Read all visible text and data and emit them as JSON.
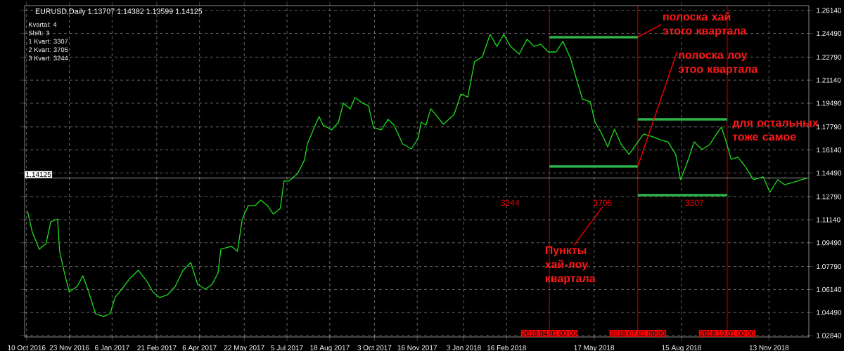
{
  "chart_data": {
    "type": "line",
    "title": "EURUSD,Daily  1.13707 1.14382 1.13599 1.14125",
    "xlim": [
      "2016-10-08",
      "2018-12-24"
    ],
    "ylim": [
      1.0274,
      1.2648
    ],
    "xticks": [
      {
        "value": "2016-10-10",
        "label": "10 Oct 2016"
      },
      {
        "value": "2016-11-23",
        "label": "23 Nov 2016"
      },
      {
        "value": "2017-01-06",
        "label": "6 Jan 2017"
      },
      {
        "value": "2017-02-21",
        "label": "21 Feb 2017"
      },
      {
        "value": "2017-04-06",
        "label": "6 Apr 2017"
      },
      {
        "value": "2017-05-22",
        "label": "22 May 2017"
      },
      {
        "value": "2017-07-05",
        "label": "5 Jul 2017"
      },
      {
        "value": "2017-08-18",
        "label": "18 Aug 2017"
      },
      {
        "value": "2017-10-03",
        "label": "3 Oct 2017"
      },
      {
        "value": "2017-11-16",
        "label": "16 Nov 2017"
      },
      {
        "value": "2018-01-03",
        "label": "3 Jan 2018"
      },
      {
        "value": "2018-02-16",
        "label": "16 Feb 2018"
      },
      {
        "value": "2018-05-17",
        "label": "17 May 2018"
      },
      {
        "value": "2018-08-15",
        "label": "15 Aug 2018"
      },
      {
        "value": "2018-11-13",
        "label": "13 Nov 2018"
      }
    ],
    "yticks": [
      {
        "value": 1.0284,
        "label": "1.02840"
      },
      {
        "value": 1.0449,
        "label": "1.04490"
      },
      {
        "value": 1.0614,
        "label": "1.06140"
      },
      {
        "value": 1.0779,
        "label": "1.07790"
      },
      {
        "value": 1.0949,
        "label": "1.09490"
      },
      {
        "value": 1.1114,
        "label": "1.11140"
      },
      {
        "value": 1.1279,
        "label": "1.12790"
      },
      {
        "value": 1.1449,
        "label": "1.14490"
      },
      {
        "value": 1.1614,
        "label": "1.16140"
      },
      {
        "value": 1.1779,
        "label": "1.17790"
      },
      {
        "value": 1.1949,
        "label": "1.19490"
      },
      {
        "value": 1.2114,
        "label": "1.21140"
      },
      {
        "value": 1.2279,
        "label": "1.22790"
      },
      {
        "value": 1.2449,
        "label": "1.24490"
      },
      {
        "value": 1.2614,
        "label": "1.26140"
      }
    ],
    "grid": true,
    "marker": "none",
    "line_style": "solid",
    "series": [
      {
        "color": "#1ed81e",
        "x": [
          "2016-10-11",
          "2016-10-16",
          "2016-10-23",
          "2016-10-30",
          "2016-11-04",
          "2016-11-11",
          "2016-11-13",
          "2016-11-18",
          "2016-11-23",
          "2016-12-01",
          "2016-12-07",
          "2016-12-13",
          "2016-12-20",
          "2016-12-28",
          "2017-01-04",
          "2017-01-09",
          "2017-01-16",
          "2017-01-24",
          "2017-02-02",
          "2017-02-11",
          "2017-02-17",
          "2017-02-24",
          "2017-03-04",
          "2017-03-12",
          "2017-03-20",
          "2017-03-28",
          "2017-04-04",
          "2017-04-12",
          "2017-04-19",
          "2017-04-25",
          "2017-04-28",
          "2017-05-09",
          "2017-05-15",
          "2017-05-20",
          "2017-05-26",
          "2017-06-02",
          "2017-06-08",
          "2017-06-15",
          "2017-06-21",
          "2017-06-28",
          "2017-07-02",
          "2017-07-07",
          "2017-07-16",
          "2017-07-23",
          "2017-07-26",
          "2017-08-01",
          "2017-08-07",
          "2017-08-11",
          "2017-08-20",
          "2017-08-27",
          "2017-09-01",
          "2017-09-08",
          "2017-09-13",
          "2017-09-21",
          "2017-09-27",
          "2017-10-02",
          "2017-10-10",
          "2017-10-17",
          "2017-10-23",
          "2017-11-01",
          "2017-11-10",
          "2017-11-17",
          "2017-11-20",
          "2017-11-25",
          "2017-11-30",
          "2017-12-05",
          "2017-12-13",
          "2017-12-24",
          "2017-12-31",
          "2018-01-07",
          "2018-01-14",
          "2018-01-22",
          "2018-01-30",
          "2018-02-06",
          "2018-02-13",
          "2018-02-20",
          "2018-03-01",
          "2018-03-09",
          "2018-03-16",
          "2018-03-23",
          "2018-03-31",
          "2018-04-08",
          "2018-04-15",
          "2018-04-23",
          "2018-04-29",
          "2018-05-05",
          "2018-05-13",
          "2018-05-18",
          "2018-05-25",
          "2018-05-31",
          "2018-06-07",
          "2018-06-14",
          "2018-06-22",
          "2018-06-29",
          "2018-07-07",
          "2018-07-17",
          "2018-07-24",
          "2018-08-01",
          "2018-08-09",
          "2018-08-14",
          "2018-08-21",
          "2018-08-28",
          "2018-09-05",
          "2018-09-13",
          "2018-09-20",
          "2018-09-25",
          "2018-09-30",
          "2018-10-05",
          "2018-10-12",
          "2018-10-20",
          "2018-10-28",
          "2018-11-07",
          "2018-11-14",
          "2018-11-22",
          "2018-11-29",
          "2018-12-10",
          "2018-12-22"
        ],
        "values": [
          1.1174,
          1.1023,
          1.0903,
          1.0943,
          1.1099,
          1.1119,
          1.0888,
          1.0732,
          1.0596,
          1.0636,
          1.0712,
          1.0596,
          1.044,
          1.042,
          1.044,
          1.0556,
          1.0616,
          1.0691,
          1.0752,
          1.0671,
          1.0596,
          1.0556,
          1.0576,
          1.0636,
          1.0752,
          1.0807,
          1.0651,
          1.0616,
          1.0651,
          1.0732,
          1.0903,
          1.0923,
          1.0888,
          1.1119,
          1.1215,
          1.1215,
          1.1255,
          1.1215,
          1.1154,
          1.1194,
          1.1391,
          1.1391,
          1.1446,
          1.1542,
          1.1657,
          1.1758,
          1.1853,
          1.1793,
          1.1758,
          1.1813,
          1.1949,
          1.1909,
          1.1989,
          1.1949,
          1.1929,
          1.1773,
          1.1758,
          1.1833,
          1.1793,
          1.1657,
          1.1622,
          1.1697,
          1.1813,
          1.1793,
          1.1909,
          1.1868,
          1.1798,
          1.1868,
          1.2014,
          1.1994,
          1.2246,
          1.2281,
          1.2442,
          1.2356,
          1.2442,
          1.2356,
          1.2301,
          1.2407,
          1.2356,
          1.2371,
          1.2316,
          1.2316,
          1.2392,
          1.2266,
          1.212,
          1.1979,
          1.1959,
          1.1813,
          1.1728,
          1.1637,
          1.1763,
          1.1652,
          1.1582,
          1.1652,
          1.1728,
          1.1707,
          1.1687,
          1.1672,
          1.1582,
          1.1401,
          1.1526,
          1.1672,
          1.1617,
          1.1652,
          1.1728,
          1.1778,
          1.1672,
          1.1547,
          1.1562,
          1.1491,
          1.1401,
          1.1421,
          1.131,
          1.1401,
          1.1365,
          1.1386,
          1.1413
        ]
      },
      {
        "color": "#2db34a",
        "x": [
          "2018-04-01",
          "2018-07-01"
        ],
        "values": [
          1.2422,
          1.2422
        ]
      },
      {
        "color": "#2db34a",
        "x": [
          "2018-04-01",
          "2018-07-01"
        ],
        "values": [
          1.1496,
          1.1496
        ]
      },
      {
        "color": "#2db34a",
        "x": [
          "2018-07-01",
          "2018-10-01"
        ],
        "values": [
          1.1833,
          1.1833
        ]
      },
      {
        "color": "#2db34a",
        "x": [
          "2018-07-01",
          "2018-10-01"
        ],
        "values": [
          1.129,
          1.129
        ]
      }
    ],
    "ref_lines": [
      {
        "axis": "x",
        "value": "2018-04-01",
        "label": "2018.04.01 00:00",
        "color": "#ff0000"
      },
      {
        "axis": "x",
        "value": "2018-07-01",
        "label": "2018.07.01 00:00",
        "color": "#ff0000"
      },
      {
        "axis": "x",
        "value": "2018-10-01",
        "label": "2018.10.01 00:00",
        "color": "#ff0000"
      },
      {
        "axis": "y",
        "value": 1.14125,
        "label": "1.14125",
        "color": "#c0c0c0"
      }
    ],
    "annotations": [
      "Kvartal: 4",
      "Shift: 3",
      "1 Kvart: 3307",
      "2 Kvart: 3705",
      "3 Kvart: 3244",
      "3244",
      "3705",
      "3307",
      {
        "text": "полоска хай этого квартала",
        "x": "2018-07-01",
        "y": 1.2422
      },
      {
        "text": "полоска лоу этоо квартала",
        "x": "2018-07-01",
        "y": 1.1496
      },
      "для остальных тоже самое",
      "Пункты хай-лоу квартала"
    ]
  }
}
